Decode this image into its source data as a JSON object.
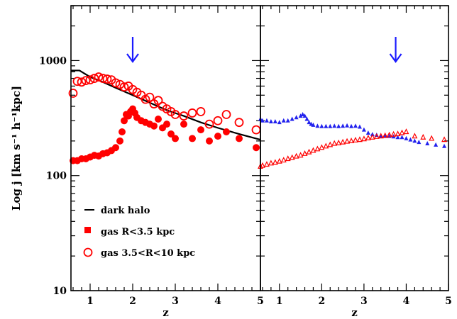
{
  "chart_data": [
    {
      "type": "scatter",
      "panel": "left",
      "xlabel": "z",
      "ylabel": "Log j [km s⁻¹ h⁻¹kpc]",
      "xlim": [
        0.55,
        5.0
      ],
      "ylim": [
        10,
        3000
      ],
      "yscale": "log",
      "x_ticks": [
        "1",
        "2",
        "3",
        "4",
        "5"
      ],
      "y_ticks": [
        "10",
        "100",
        "1000"
      ],
      "annotation": {
        "type": "arrow-down",
        "x": 2.0,
        "color": "#1a1aff"
      },
      "legend_position": "bottom-left",
      "series": [
        {
          "name": "dark halo",
          "marker": "line",
          "color": "#000000",
          "x": [
            0.55,
            0.75,
            1.0,
            1.3,
            1.6,
            2.0,
            2.4,
            2.8,
            3.2,
            3.6,
            4.0,
            4.5,
            5.0
          ],
          "y": [
            820,
            820,
            720,
            650,
            580,
            500,
            430,
            370,
            330,
            290,
            260,
            230,
            205
          ]
        },
        {
          "name": "gas R<3.5 kpc",
          "marker": "filled-circle",
          "color": "#ff0000",
          "x": [
            0.6,
            0.7,
            0.8,
            0.9,
            1.0,
            1.1,
            1.2,
            1.3,
            1.4,
            1.5,
            1.6,
            1.7,
            1.75,
            1.8,
            1.85,
            1.9,
            1.95,
            2.0,
            2.05,
            2.1,
            2.2,
            2.3,
            2.4,
            2.5,
            2.6,
            2.7,
            2.8,
            2.9,
            3.0,
            3.2,
            3.4,
            3.6,
            3.8,
            4.0,
            4.2,
            4.5,
            4.9
          ],
          "y": [
            135,
            135,
            140,
            140,
            145,
            150,
            148,
            155,
            158,
            165,
            175,
            200,
            240,
            300,
            340,
            330,
            360,
            380,
            350,
            320,
            300,
            290,
            280,
            270,
            310,
            260,
            280,
            230,
            210,
            280,
            210,
            250,
            200,
            220,
            240,
            210,
            175
          ]
        },
        {
          "name": "gas 3.5<R<10 kpc",
          "marker": "open-circle",
          "color": "#ff0000",
          "x": [
            0.6,
            0.7,
            0.8,
            0.9,
            1.0,
            1.1,
            1.2,
            1.3,
            1.4,
            1.5,
            1.6,
            1.7,
            1.8,
            1.9,
            2.0,
            2.1,
            2.2,
            2.3,
            2.4,
            2.5,
            2.6,
            2.7,
            2.8,
            2.9,
            3.0,
            3.2,
            3.4,
            3.6,
            3.8,
            4.0,
            4.2,
            4.5,
            4.9
          ],
          "y": [
            520,
            660,
            650,
            670,
            680,
            700,
            720,
            700,
            690,
            680,
            640,
            620,
            590,
            600,
            560,
            530,
            500,
            460,
            480,
            420,
            450,
            400,
            380,
            360,
            340,
            330,
            350,
            360,
            280,
            300,
            340,
            290,
            250
          ]
        }
      ]
    },
    {
      "type": "scatter",
      "panel": "right",
      "xlabel": "z",
      "xlim": [
        0.55,
        5.0
      ],
      "ylim": [
        10,
        3000
      ],
      "yscale": "log",
      "x_ticks": [
        "1",
        "2",
        "3",
        "4",
        "5"
      ],
      "annotation": {
        "type": "arrow-down",
        "x": 3.75,
        "color": "#1a1aff"
      },
      "series": [
        {
          "marker": "triangle",
          "color": "#2222ee",
          "x": [
            0.55,
            0.6,
            0.7,
            0.8,
            0.9,
            1.0,
            1.1,
            1.2,
            1.3,
            1.4,
            1.5,
            1.55,
            1.6,
            1.65,
            1.7,
            1.75,
            1.8,
            1.9,
            2.0,
            2.1,
            2.2,
            2.3,
            2.4,
            2.5,
            2.6,
            2.7,
            2.8,
            2.9,
            3.0,
            3.1,
            3.2,
            3.3,
            3.4,
            3.5,
            3.6,
            3.7,
            3.8,
            3.9,
            4.0,
            4.1,
            4.2,
            4.3,
            4.5,
            4.7,
            4.9
          ],
          "y": [
            310,
            300,
            300,
            295,
            295,
            290,
            300,
            300,
            310,
            320,
            330,
            340,
            330,
            310,
            290,
            280,
            275,
            270,
            268,
            268,
            268,
            270,
            268,
            270,
            272,
            268,
            270,
            265,
            250,
            235,
            228,
            225,
            222,
            222,
            220,
            218,
            215,
            215,
            210,
            205,
            200,
            195,
            190,
            185,
            180
          ]
        },
        {
          "marker": "open-triangle",
          "color": "#ff0000",
          "x": [
            0.55,
            0.6,
            0.7,
            0.8,
            0.9,
            1.0,
            1.1,
            1.2,
            1.3,
            1.4,
            1.5,
            1.6,
            1.7,
            1.8,
            1.9,
            2.0,
            2.1,
            2.2,
            2.3,
            2.4,
            2.5,
            2.6,
            2.7,
            2.8,
            2.9,
            3.0,
            3.1,
            3.2,
            3.3,
            3.4,
            3.5,
            3.6,
            3.7,
            3.8,
            3.9,
            4.0,
            4.2,
            4.4,
            4.6,
            4.9
          ],
          "y": [
            120,
            122,
            125,
            128,
            130,
            133,
            136,
            140,
            143,
            147,
            150,
            155,
            160,
            165,
            170,
            175,
            180,
            185,
            190,
            192,
            195,
            198,
            200,
            203,
            205,
            208,
            212,
            215,
            218,
            220,
            222,
            225,
            228,
            230,
            235,
            240,
            220,
            215,
            210,
            205
          ]
        }
      ]
    }
  ]
}
